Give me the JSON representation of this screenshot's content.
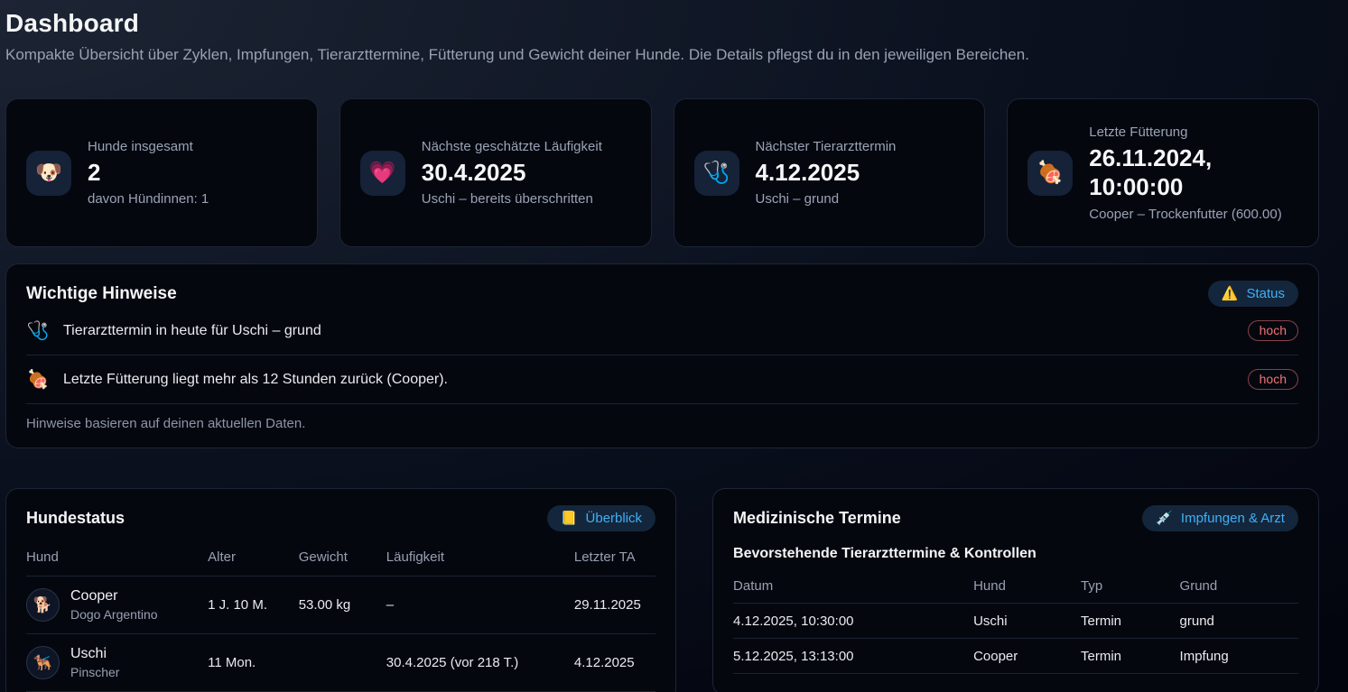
{
  "page": {
    "title": "Dashboard",
    "subtitle": "Kompakte Übersicht über Zyklen, Impfungen, Tierarzttermine, Fütterung und Gewicht deiner Hunde. Die Details pflegst du in den jeweiligen Bereichen."
  },
  "stat_cards": [
    {
      "icon": "🐶",
      "icon_name": "dog-face-icon",
      "label": "Hunde insgesamt",
      "value": "2",
      "sub": "davon Hündinnen: 1"
    },
    {
      "icon": "💗",
      "icon_name": "heart-icon",
      "label": "Nächste geschätzte Läufigkeit",
      "value": "30.4.2025",
      "sub": "Uschi – bereits überschritten"
    },
    {
      "icon": "🩺",
      "icon_name": "stethoscope-icon",
      "label": "Nächster Tierarzttermin",
      "value": "4.12.2025",
      "sub": "Uschi – grund"
    },
    {
      "icon": "🍖",
      "icon_name": "meat-bone-icon",
      "label": "Letzte Fütterung",
      "value": "26.11.2024, 10:00:00",
      "sub": "Cooper – Trockenfutter (600.00)"
    }
  ],
  "alerts": {
    "title": "Wichtige Hinweise",
    "status_badge": {
      "icon": "⚠️",
      "label": "Status"
    },
    "items": [
      {
        "icon": "🩺",
        "text": "Tierarzttermin in heute für Uschi – grund",
        "severity": "hoch"
      },
      {
        "icon": "🍖",
        "text": "Letzte Fütterung liegt mehr als 12 Stunden zurück (Cooper).",
        "severity": "hoch"
      }
    ],
    "footer": "Hinweise basieren auf deinen aktuellen Daten."
  },
  "dog_status": {
    "title": "Hundestatus",
    "button": {
      "icon": "📒",
      "label": "Überblick"
    },
    "columns": [
      "Hund",
      "Alter",
      "Gewicht",
      "Läufigkeit",
      "Letzter TA"
    ],
    "rows": [
      {
        "icon": "🐕",
        "name": "Cooper",
        "breed": "Dogo Argentino",
        "alter": "1 J. 10 M.",
        "gewicht": "53.00 kg",
        "laeufigkeit": "–",
        "letzter_ta": "29.11.2025"
      },
      {
        "icon": "🐕‍🦺",
        "name": "Uschi",
        "breed": "Pinscher",
        "alter": "11 Mon.",
        "gewicht": "",
        "laeufigkeit": "30.4.2025 (vor 218 T.)",
        "letzter_ta": "4.12.2025"
      }
    ]
  },
  "medical": {
    "title": "Medizinische Termine",
    "button": {
      "icon": "💉",
      "label": "Impfungen & Arzt"
    },
    "subtitle": "Bevorstehende Tierarzttermine & Kontrollen",
    "columns": [
      "Datum",
      "Hund",
      "Typ",
      "Grund"
    ],
    "rows": [
      {
        "datum": "4.12.2025, 10:30:00",
        "hund": "Uschi",
        "typ": "Termin",
        "grund": "grund"
      },
      {
        "datum": "5.12.2025, 13:13:00",
        "hund": "Cooper",
        "typ": "Termin",
        "grund": "Impfung"
      }
    ]
  },
  "colors": {
    "accent_blue": "#3fb0f6",
    "alert_red": "#f07474",
    "card_bg": "#05070f",
    "card_border": "#1d2534",
    "page_bg_top": "#1d2534",
    "page_bg_bottom": "#03050e"
  }
}
